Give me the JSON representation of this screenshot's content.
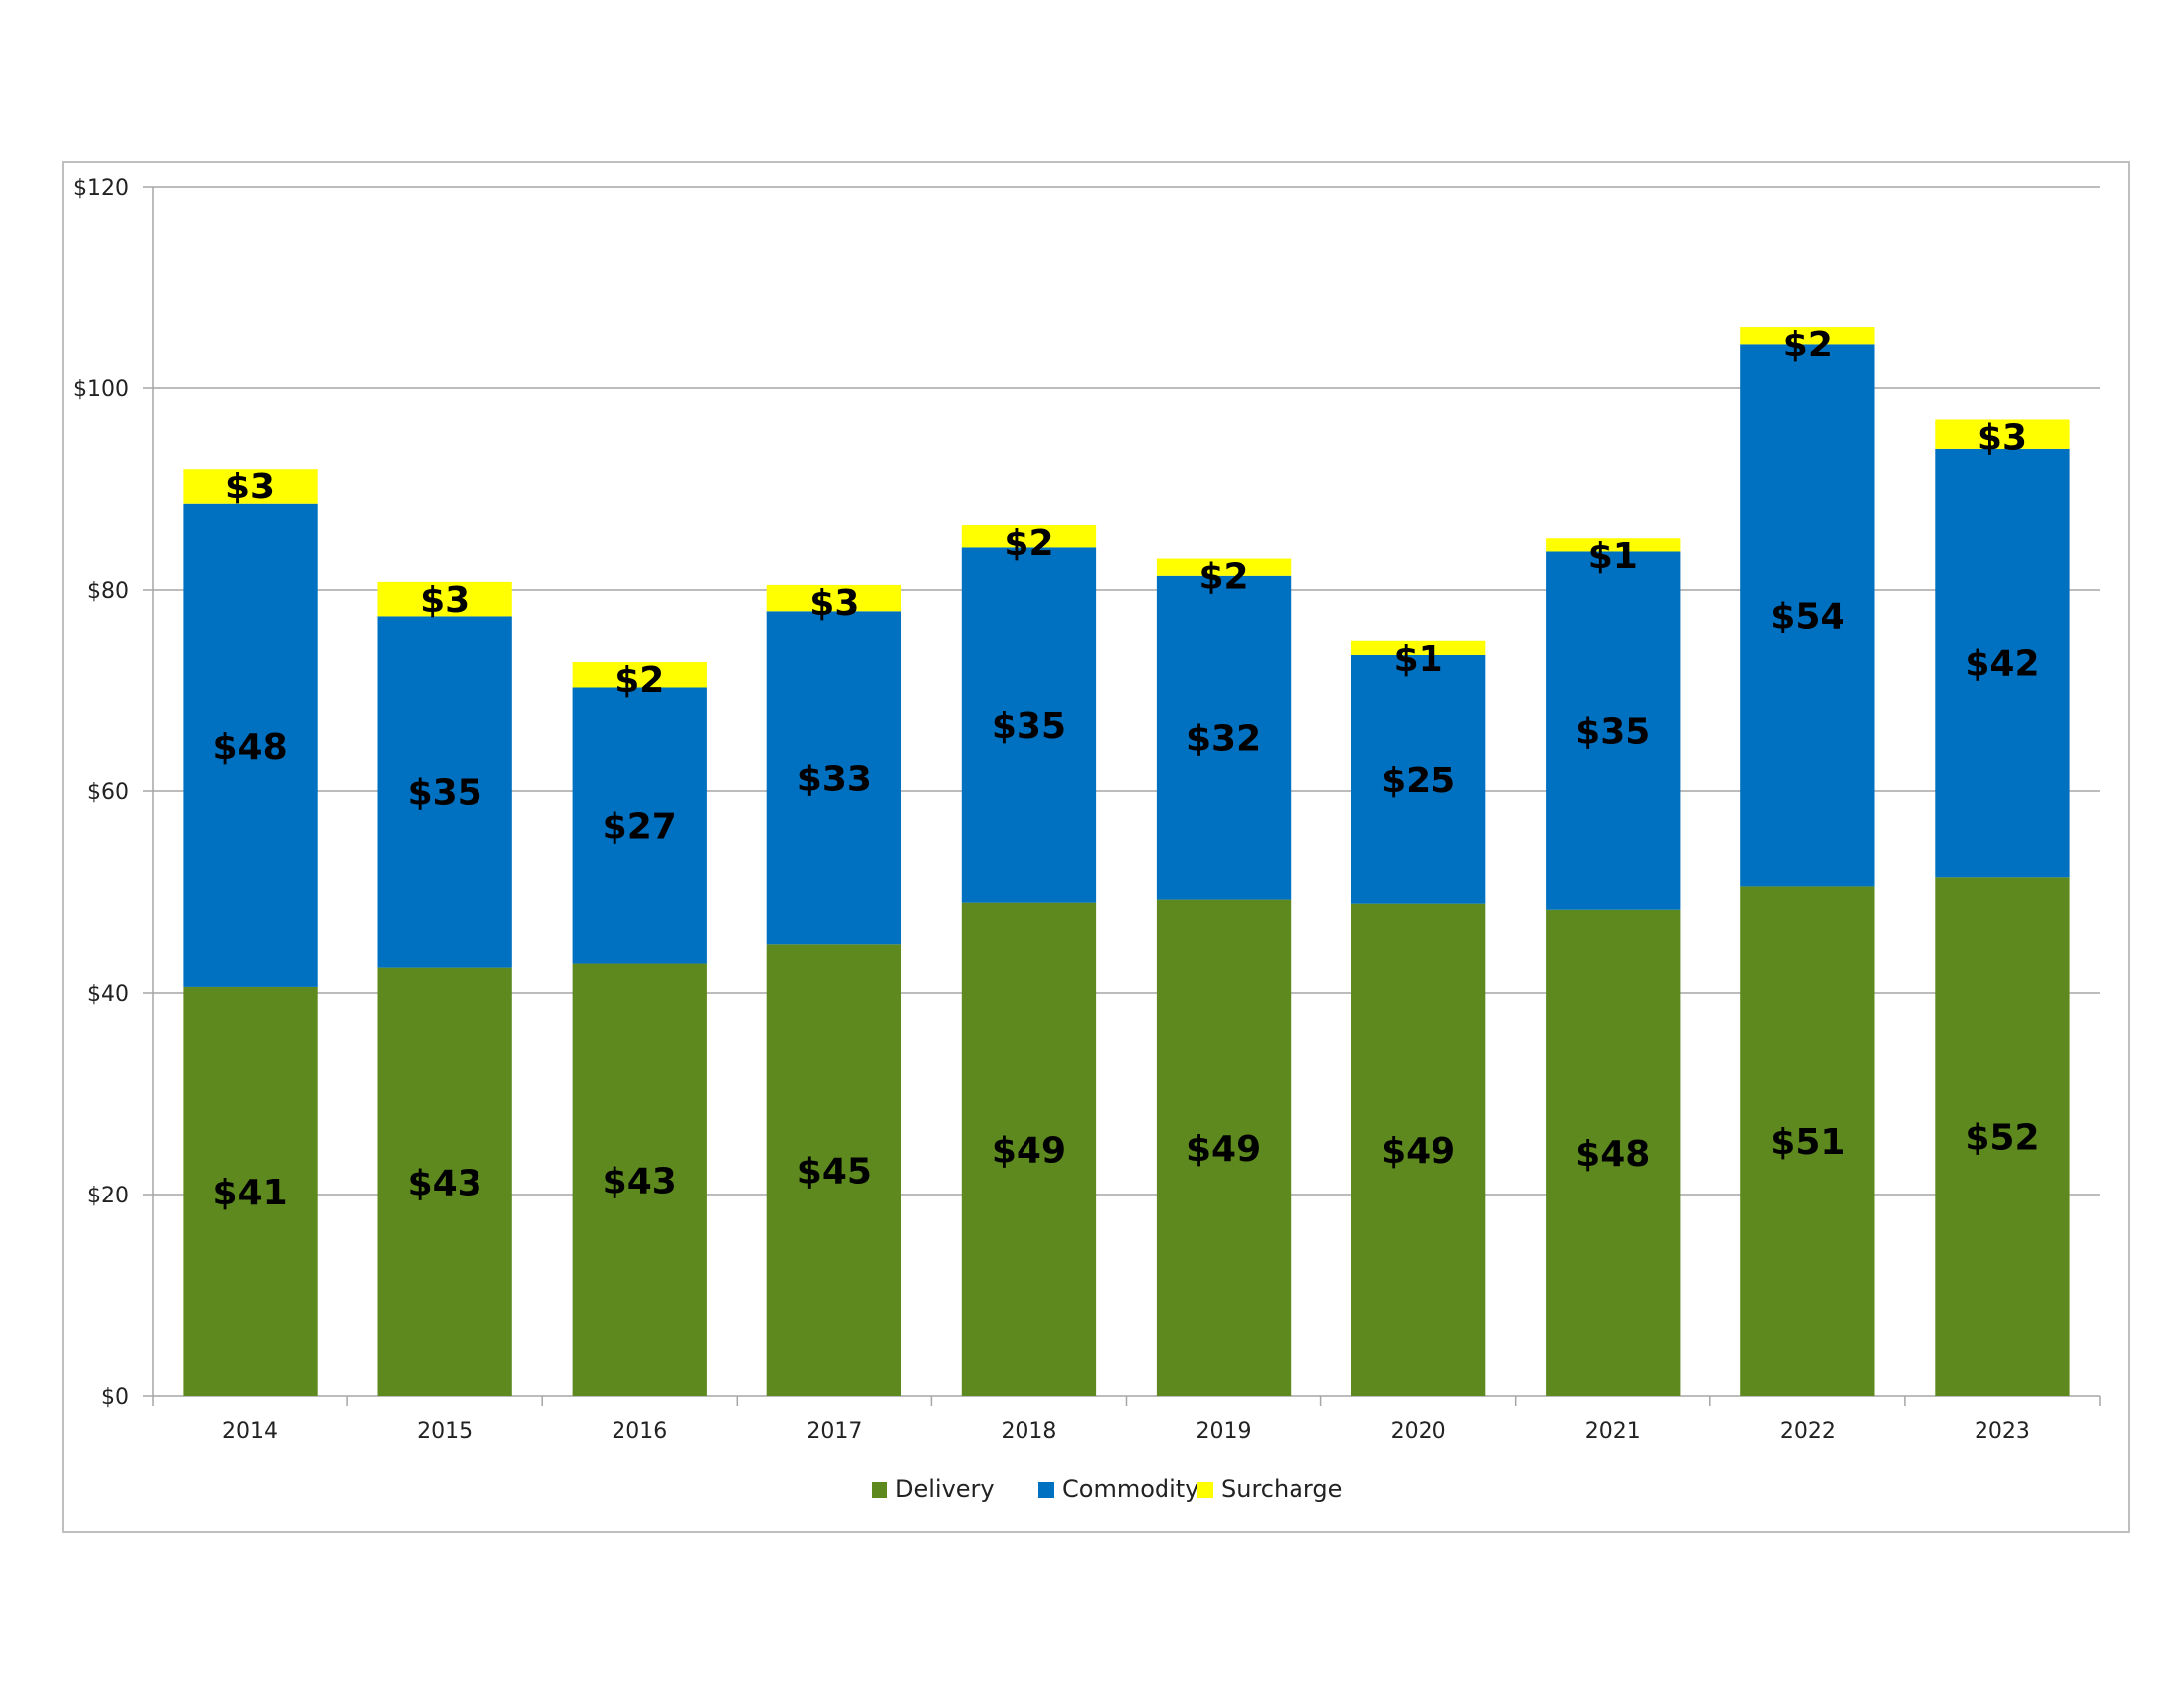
{
  "chart_data": {
    "type": "bar",
    "stacked": true,
    "title": "",
    "xlabel": "",
    "ylabel": "",
    "categories": [
      "2014",
      "2015",
      "2016",
      "2017",
      "2018",
      "2019",
      "2020",
      "2021",
      "2022",
      "2023"
    ],
    "series": [
      {
        "name": "Delivery",
        "color": "#5e891e",
        "values": [
          40.6,
          42.5,
          42.9,
          44.8,
          49.0,
          49.3,
          48.9,
          48.3,
          50.6,
          51.5
        ],
        "labels": [
          "$41",
          "$43",
          "$43",
          "$45",
          "$49",
          "$49",
          "$49",
          "$48",
          "$51",
          "$52"
        ]
      },
      {
        "name": "Commodity",
        "color": "#0070c0",
        "values": [
          47.9,
          34.9,
          27.4,
          33.1,
          35.2,
          32.1,
          24.6,
          35.5,
          53.8,
          42.5
        ],
        "labels": [
          "$48",
          "$35",
          "$27",
          "$33",
          "$35",
          "$32",
          "$25",
          "$35",
          "$54",
          "$42"
        ]
      },
      {
        "name": "Surcharge",
        "color": "#ffff00",
        "values": [
          3.5,
          3.4,
          2.5,
          2.6,
          2.2,
          1.7,
          1.4,
          1.3,
          1.7,
          2.9
        ],
        "labels": [
          "$3",
          "$3",
          "$2",
          "$3",
          "$2",
          "$2",
          "$1",
          "$1",
          "$2",
          "$3"
        ]
      }
    ],
    "ylim": [
      0,
      120
    ],
    "yticks": [
      0,
      20,
      40,
      60,
      80,
      100,
      120
    ],
    "ytick_labels": [
      "$0",
      "$20",
      "$40",
      "$60",
      "$80",
      "$100",
      "$120"
    ],
    "grid": true,
    "legend": "bottom"
  }
}
